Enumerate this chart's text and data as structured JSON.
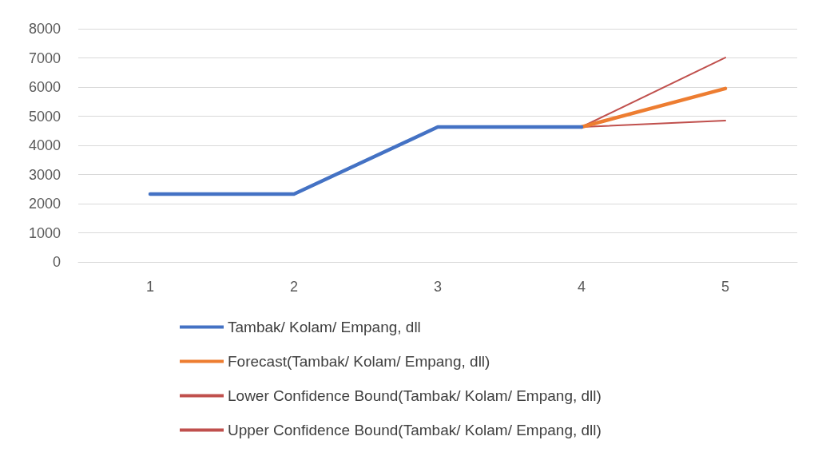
{
  "chart_data": {
    "type": "line",
    "categories": [
      "1",
      "2",
      "3",
      "4",
      "5"
    ],
    "series": [
      {
        "name": "Tambak/ Kolam/ Empang, dll",
        "color": "#4472c4",
        "values": [
          2330,
          2330,
          4630,
          4630,
          null
        ]
      },
      {
        "name": "Forecast(Tambak/ Kolam/ Empang, dll)",
        "color": "#ed7d31",
        "values": [
          null,
          null,
          null,
          4630,
          5950
        ]
      },
      {
        "name": "Lower Confidence Bound(Tambak/ Kolam/ Empang, dll)",
        "color": "#c0504d",
        "values": [
          null,
          null,
          null,
          4630,
          4850
        ]
      },
      {
        "name": "Upper Confidence Bound(Tambak/ Kolam/ Empang, dll)",
        "color": "#c0504d",
        "values": [
          null,
          null,
          null,
          4630,
          7010
        ]
      }
    ],
    "ylim": [
      0,
      8000
    ],
    "yticks": [
      0,
      1000,
      2000,
      3000,
      4000,
      5000,
      6000,
      7000,
      8000
    ],
    "grid": "y",
    "legend": "bottom",
    "marker": "none",
    "line_style": "solid"
  }
}
